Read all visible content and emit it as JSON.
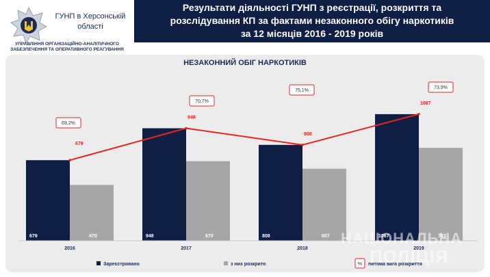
{
  "header": {
    "org_name": "ГУНП в Херсонській області",
    "department": "УПРАВЛІННЯ ОРГАНІЗАЦІЙНО-АНАЛІТИЧНОГО ЗАБЕЗПЕЧЕННЯ ТА ОПЕРАТИВНОГО РЕАГУВАННЯ",
    "title": "Результати діяльності ГУНП з реєстрації, розкриття та\nрозслідування КП за фактами незаконного обігу наркотиків\nза  12 місяців 2016 - 2019 років"
  },
  "watermark": {
    "line1": "НАЦІОНАЛЬНА",
    "line2": "ПОЛІЦІЯ"
  },
  "colors": {
    "navy": "#0f1e44",
    "grey": "#a6a6a6",
    "red": "#e8251f",
    "panel": "#ececec"
  },
  "chart_data": {
    "type": "bar",
    "title": "НЕЗАКОННИЙ ОБІГ НАРКОТИКІВ",
    "categories": [
      "2016",
      "2017",
      "2018",
      "2019"
    ],
    "series": [
      {
        "name": "Зареєстровано",
        "type": "bar",
        "values": [
          679,
          948,
          808,
          1067
        ],
        "labels": [
          "679",
          "948",
          "808",
          "1067"
        ]
      },
      {
        "name": "з них розкрито",
        "type": "bar",
        "values": [
          470,
          670,
          607,
          783
        ],
        "labels": [
          "470",
          "670",
          "607",
          "783"
        ]
      },
      {
        "name": "питома вага розкриття",
        "type": "line",
        "values": [
          69.2,
          70.7,
          75.1,
          73.9
        ],
        "labels": [
          "69,2%",
          "70,7%",
          "75,1%",
          "73,9%"
        ]
      }
    ],
    "line_point_labels": [
      "679",
      "948",
      "808",
      "1067"
    ],
    "legend_marker_text": "%",
    "ylim": [
      0,
      1200
    ],
    "legend_position": "bottom"
  }
}
